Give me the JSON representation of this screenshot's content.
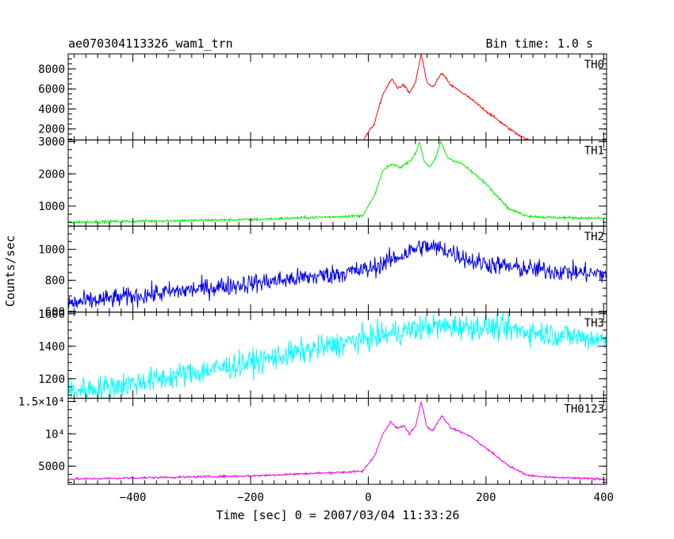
{
  "header": {
    "title": "ae070304113326_wam1_trn",
    "bin_time": "Bin time: 1.0 s"
  },
  "axes": {
    "ylabel": "Counts/sec",
    "xlabel": "Time [sec] 0 = 2007/03/04 11:33:26",
    "x_ticks": [
      "−400",
      "−200",
      "0",
      "200",
      "400"
    ]
  },
  "chart_data": {
    "type": "line",
    "xlim": [
      -510,
      405
    ],
    "x_ticks": [
      -400,
      -200,
      0,
      200,
      400
    ],
    "panels": [
      {
        "name": "TH0",
        "color": "#ff0000",
        "noise": 90,
        "ylim": [
          900,
          9500
        ],
        "y_ticks": [
          2000,
          4000,
          6000,
          8000
        ],
        "tick_labels": [
          "2000",
          "4000",
          "6000",
          "8000"
        ],
        "profile": [
          [
            -510,
            500
          ],
          [
            -200,
            600
          ],
          [
            -10,
            800
          ],
          [
            10,
            2500
          ],
          [
            25,
            5500
          ],
          [
            40,
            7000
          ],
          [
            50,
            6100
          ],
          [
            60,
            6400
          ],
          [
            70,
            5600
          ],
          [
            80,
            6600
          ],
          [
            90,
            9500
          ],
          [
            100,
            6500
          ],
          [
            110,
            6200
          ],
          [
            125,
            7600
          ],
          [
            140,
            6400
          ],
          [
            170,
            5200
          ],
          [
            200,
            3800
          ],
          [
            240,
            2000
          ],
          [
            270,
            900
          ],
          [
            300,
            700
          ],
          [
            400,
            600
          ]
        ]
      },
      {
        "name": "TH1",
        "color": "#00ee00",
        "noise": 30,
        "ylim": [
          380,
          3050
        ],
        "y_ticks": [
          1000,
          2000,
          3000
        ],
        "tick_labels": [
          "1000",
          "2000",
          "3000"
        ],
        "profile": [
          [
            -510,
            500
          ],
          [
            -200,
            580
          ],
          [
            -10,
            700
          ],
          [
            10,
            1300
          ],
          [
            25,
            2100
          ],
          [
            40,
            2300
          ],
          [
            55,
            2200
          ],
          [
            70,
            2400
          ],
          [
            80,
            2600
          ],
          [
            87,
            3000
          ],
          [
            95,
            2400
          ],
          [
            105,
            2200
          ],
          [
            115,
            2500
          ],
          [
            123,
            3000
          ],
          [
            135,
            2500
          ],
          [
            160,
            2300
          ],
          [
            200,
            1700
          ],
          [
            240,
            900
          ],
          [
            270,
            700
          ],
          [
            300,
            650
          ],
          [
            400,
            620
          ]
        ]
      },
      {
        "name": "TH2",
        "color": "#0000ee",
        "noise": 45,
        "ylim": [
          595,
          1150
        ],
        "y_ticks": [
          600,
          800,
          1000
        ],
        "tick_labels": [
          "600",
          "800",
          "1000"
        ],
        "profile": [
          [
            -510,
            650
          ],
          [
            -300,
            740
          ],
          [
            -100,
            820
          ],
          [
            0,
            870
          ],
          [
            50,
            950
          ],
          [
            90,
            1020
          ],
          [
            130,
            1000
          ],
          [
            180,
            920
          ],
          [
            250,
            880
          ],
          [
            320,
            860
          ],
          [
            400,
            840
          ]
        ]
      },
      {
        "name": "TH3",
        "color": "#00ffff",
        "noise": 55,
        "ylim": [
          1080,
          1610
        ],
        "y_ticks": [
          1200,
          1400,
          1600
        ],
        "tick_labels": [
          "1200",
          "1400",
          "1600"
        ],
        "profile": [
          [
            -510,
            1120
          ],
          [
            -400,
            1170
          ],
          [
            -200,
            1300
          ],
          [
            0,
            1450
          ],
          [
            100,
            1520
          ],
          [
            200,
            1520
          ],
          [
            300,
            1480
          ],
          [
            400,
            1440
          ]
        ]
      },
      {
        "name": "TH0123",
        "color": "#ee00ee",
        "noise": 120,
        "ylim": [
          2200,
          15500
        ],
        "y_ticks": [
          5000,
          10000,
          15000
        ],
        "tick_labels": [
          "5000",
          "10⁴",
          "1.5×10⁴"
        ],
        "profile": [
          [
            -510,
            3000
          ],
          [
            -200,
            3500
          ],
          [
            -10,
            4200
          ],
          [
            10,
            6500
          ],
          [
            25,
            10000
          ],
          [
            38,
            11800
          ],
          [
            50,
            10800
          ],
          [
            60,
            11300
          ],
          [
            70,
            10000
          ],
          [
            80,
            11200
          ],
          [
            90,
            15000
          ],
          [
            100,
            11000
          ],
          [
            110,
            10500
          ],
          [
            125,
            12800
          ],
          [
            140,
            11000
          ],
          [
            170,
            9800
          ],
          [
            200,
            7800
          ],
          [
            240,
            5000
          ],
          [
            270,
            3600
          ],
          [
            300,
            3300
          ],
          [
            400,
            3000
          ]
        ]
      }
    ]
  }
}
